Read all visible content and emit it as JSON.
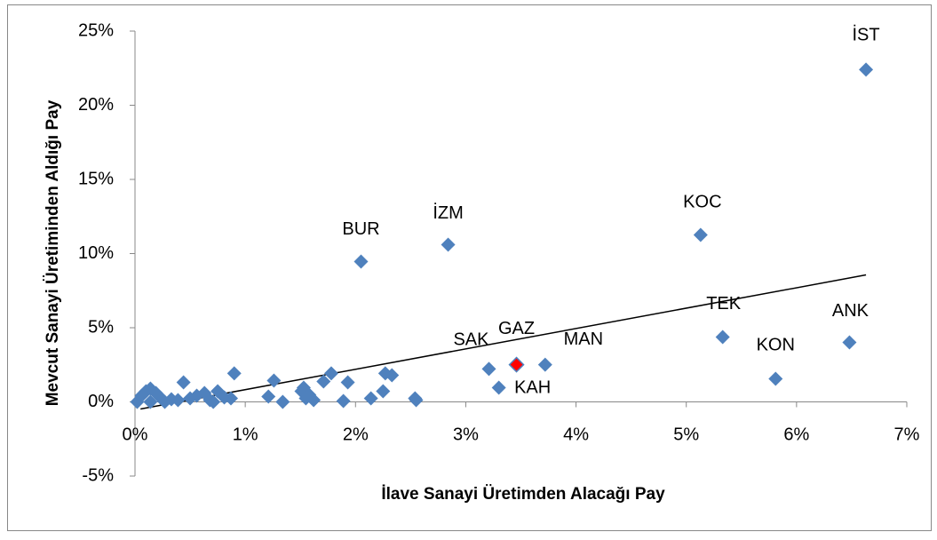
{
  "chart_data": {
    "type": "scatter",
    "xlabel": "İlave Sanayi Üretimden Alacağı Pay",
    "ylabel": "Mevcut Sanayi Üretiminden Aldığı Pay",
    "xlim": [
      0,
      7
    ],
    "ylim": [
      -5,
      25
    ],
    "xticks": [
      {
        "value": 0,
        "label": "0%"
      },
      {
        "value": 1,
        "label": "1%"
      },
      {
        "value": 2,
        "label": "2%"
      },
      {
        "value": 3,
        "label": "3%"
      },
      {
        "value": 4,
        "label": "4%"
      },
      {
        "value": 5,
        "label": "5%"
      },
      {
        "value": 6,
        "label": "6%"
      },
      {
        "value": 7,
        "label": "7%"
      }
    ],
    "yticks": [
      {
        "value": -5,
        "label": "-5%"
      },
      {
        "value": 0,
        "label": "0%"
      },
      {
        "value": 5,
        "label": "5%"
      },
      {
        "value": 10,
        "label": "10%"
      },
      {
        "value": 15,
        "label": "15%"
      },
      {
        "value": 20,
        "label": "20%"
      },
      {
        "value": 25,
        "label": "25%"
      }
    ],
    "series": [
      {
        "color": "#4f81bd",
        "labels": [
          "İST",
          "KOC",
          "İZM",
          "BUR",
          "TEK",
          "ANK",
          "KON",
          "MAN",
          "SAK",
          "KAH",
          null,
          null,
          null,
          null,
          null,
          null,
          null,
          null,
          null,
          null,
          null,
          null,
          null,
          null,
          null,
          null,
          null,
          null,
          null,
          null,
          null,
          null,
          null,
          null,
          null,
          null,
          null,
          null,
          null,
          null,
          null,
          null,
          null,
          null,
          null,
          null,
          null,
          null
        ],
        "x": [
          6.63,
          5.13,
          2.84,
          2.05,
          5.33,
          6.48,
          5.81,
          3.72,
          3.21,
          3.3,
          1.21,
          1.26,
          1.34,
          1.51,
          1.53,
          1.58,
          1.62,
          1.55,
          1.78,
          1.71,
          1.89,
          1.93,
          2.14,
          2.25,
          2.27,
          2.33,
          2.54,
          2.55,
          0.02,
          0.06,
          0.1,
          0.14,
          0.19,
          0.23,
          0.27,
          0.39,
          0.44,
          0.5,
          0.56,
          0.63,
          0.68,
          0.75,
          0.81,
          0.87,
          0.9,
          0.71,
          0.14,
          0.33
        ],
        "values": [
          22.4,
          11.26,
          10.6,
          9.46,
          4.37,
          4.01,
          1.56,
          2.51,
          2.22,
          0.96,
          0.36,
          1.44,
          0,
          0.72,
          0.96,
          0.48,
          0.12,
          0.24,
          1.92,
          1.38,
          0.06,
          1.32,
          0.24,
          0.72,
          1.92,
          1.8,
          0.24,
          0.12,
          0,
          0.42,
          0.72,
          0.9,
          0.6,
          0.3,
          0,
          0.12,
          1.32,
          0.24,
          0.42,
          0.6,
          0.12,
          0.72,
          0.3,
          0.24,
          1.92,
          0,
          0,
          0.18
        ]
      },
      {
        "color": "#ff0000",
        "labels": [
          "GAZ"
        ],
        "x": [
          3.46
        ],
        "values": [
          2.51
        ]
      }
    ],
    "trendline": {
      "color": "#000000",
      "x": [
        0.05,
        6.63
      ],
      "values": [
        -0.48,
        8.56
      ]
    }
  }
}
